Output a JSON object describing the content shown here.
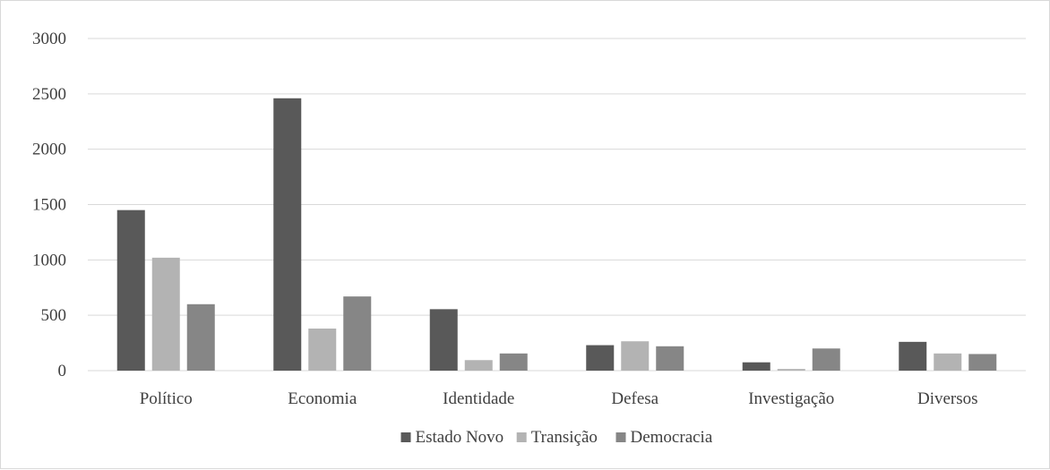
{
  "chart_data": {
    "type": "bar",
    "title": "",
    "xlabel": "",
    "ylabel": "",
    "ylim": [
      0,
      3000
    ],
    "yticks": [
      0,
      500,
      1000,
      1500,
      2000,
      2500,
      3000
    ],
    "grid": true,
    "legend_position": "bottom",
    "categories": [
      "Político",
      "Economia",
      "Identidade",
      "Defesa",
      "Investigação",
      "Diversos"
    ],
    "series": [
      {
        "name": "Estado Novo",
        "color": "#595959",
        "values": [
          1450,
          2460,
          555,
          230,
          75,
          260
        ]
      },
      {
        "name": "Transição",
        "color": "#b3b3b3",
        "values": [
          1020,
          380,
          95,
          265,
          15,
          155
        ]
      },
      {
        "name": "Democracia",
        "color": "#868686",
        "values": [
          600,
          670,
          155,
          220,
          200,
          150
        ]
      }
    ]
  }
}
